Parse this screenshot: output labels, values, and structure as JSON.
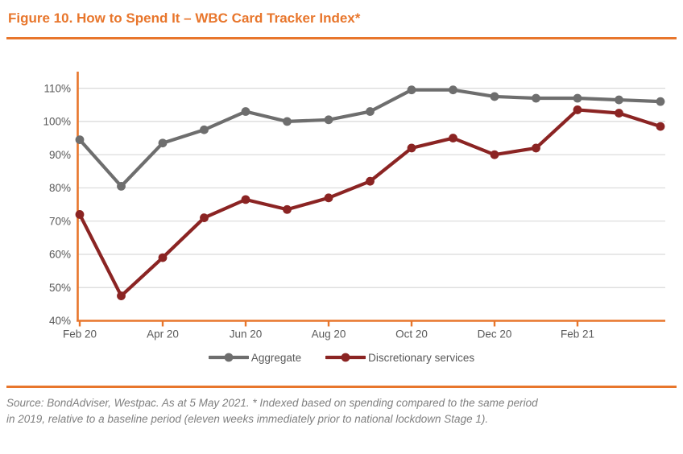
{
  "chart_data": {
    "type": "line",
    "title": "Figure 10. How to Spend It – WBC Card Tracker Index*",
    "xlabel": "",
    "ylabel": "",
    "x": [
      "Feb 20",
      "Mar 20",
      "Apr 20",
      "May 20",
      "Jun 20",
      "Jul 20",
      "Aug 20",
      "Sep 20",
      "Oct 20",
      "Nov 20",
      "Dec 20",
      "Jan 21",
      "Feb 21",
      "Mar 21",
      "Apr 21"
    ],
    "x_tick_labels": [
      "Feb 20",
      "Apr 20",
      "Jun 20",
      "Aug 20",
      "Oct 20",
      "Dec 20",
      "Feb 21"
    ],
    "x_tick_indices": [
      0,
      2,
      4,
      6,
      8,
      10,
      12
    ],
    "y_tick_values": [
      40,
      50,
      60,
      70,
      80,
      90,
      100,
      110
    ],
    "y_tick_labels": [
      "40%",
      "50%",
      "60%",
      "70%",
      "80%",
      "90%",
      "100%",
      "110%"
    ],
    "ylim": [
      40,
      115
    ],
    "grid": true,
    "legend_position": "bottom",
    "series": [
      {
        "name": "Aggregate",
        "color": "#6E6E6E",
        "values": [
          94.5,
          80.5,
          93.5,
          97.5,
          103,
          100,
          100.5,
          103,
          109.5,
          109.5,
          107.5,
          107,
          107,
          106.5,
          106
        ]
      },
      {
        "name": "Discretionary services",
        "color": "#8B2423",
        "values": [
          72,
          47.5,
          59,
          71,
          76.5,
          73.5,
          77,
          82,
          92,
          95,
          90,
          92,
          103.5,
          102.5,
          98.5
        ]
      }
    ]
  },
  "colors": {
    "accent_orange": "#E8762C",
    "gridline": "#D9D9D9",
    "axis_text": "#595959",
    "source_text": "#7F7F7F"
  },
  "source": {
    "lines": [
      "Source: BondAdviser, Westpac. As at 5 May 2021. * Indexed based on spending compared to the same period",
      "in 2019, relative to a baseline period (eleven weeks immediately prior to national lockdown Stage 1)."
    ]
  }
}
